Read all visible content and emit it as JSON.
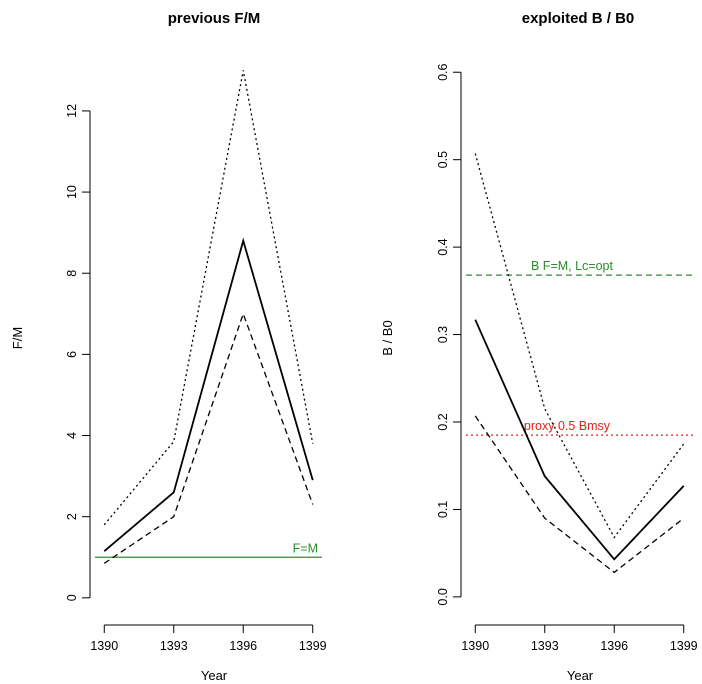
{
  "chart_data": [
    {
      "type": "line",
      "title": "previous F/M",
      "xlabel": "Year",
      "ylabel": "F/M",
      "x": [
        1390,
        1393,
        1396,
        1399
      ],
      "xticks": [
        "1390",
        "1393",
        "1396",
        "1399"
      ],
      "yticks": [
        "0",
        "2",
        "4",
        "6",
        "8",
        "10",
        "12"
      ],
      "xlim": [
        1389.6,
        1399.4
      ],
      "ylim": [
        -0.3,
        13.6
      ],
      "series": [
        {
          "style": "solid",
          "values": [
            1.15,
            2.6,
            8.8,
            2.9
          ]
        },
        {
          "style": "dotted",
          "values": [
            1.8,
            3.85,
            13.0,
            3.8
          ]
        },
        {
          "style": "dashed",
          "values": [
            0.85,
            2.0,
            7.0,
            2.3
          ]
        }
      ],
      "reference_lines": [
        {
          "y": 1.0,
          "label": "F=M",
          "color": "#2e8b2e",
          "style": "solid"
        }
      ],
      "grid": false
    },
    {
      "type": "line",
      "title": "exploited B / B0",
      "xlabel": "Year",
      "ylabel": "B / B0",
      "x": [
        1390,
        1393,
        1396,
        1399
      ],
      "xticks": [
        "1390",
        "1393",
        "1396",
        "1399"
      ],
      "yticks": [
        "0.0",
        "0.1",
        "0.2",
        "0.3",
        "0.4",
        "0.5",
        "0.6"
      ],
      "xlim": [
        1389.6,
        1399.4
      ],
      "ylim": [
        -0.015,
        0.63
      ],
      "series": [
        {
          "style": "solid",
          "values": [
            0.317,
            0.138,
            0.043,
            0.127
          ]
        },
        {
          "style": "dotted",
          "values": [
            0.507,
            0.215,
            0.068,
            0.175
          ]
        },
        {
          "style": "dashed",
          "values": [
            0.207,
            0.09,
            0.028,
            0.09
          ]
        }
      ],
      "reference_lines": [
        {
          "y": 0.368,
          "label": "B F=M, Lc=opt",
          "color": "#2e8b2e",
          "style": "dashed"
        },
        {
          "y": 0.185,
          "label": "proxy 0.5 Bmsy",
          "color": "#e02020",
          "style": "dotted"
        }
      ],
      "grid": false
    }
  ]
}
